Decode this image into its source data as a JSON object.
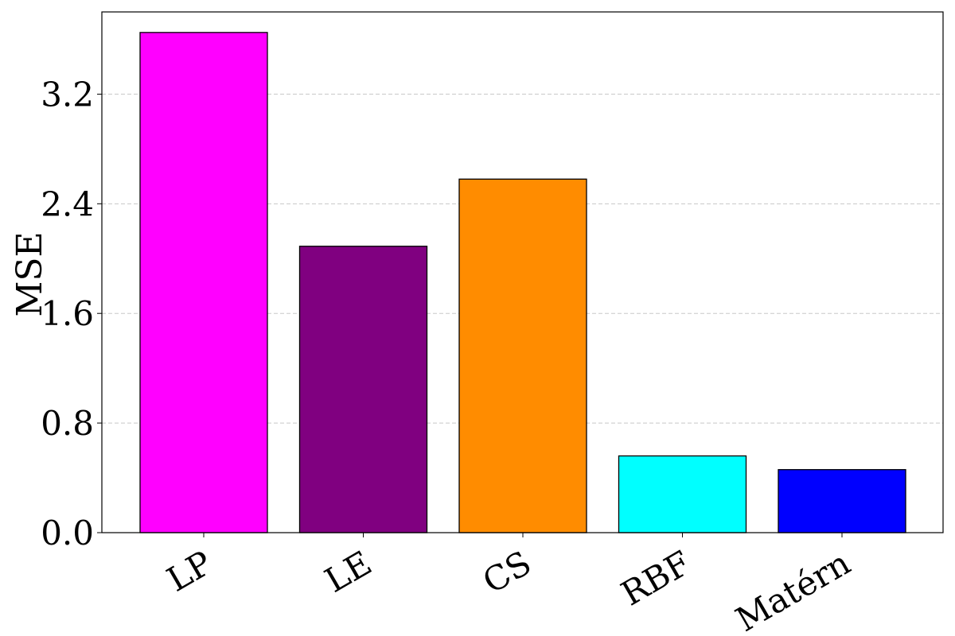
{
  "chart_data": {
    "type": "bar",
    "title": "",
    "xlabel": "",
    "ylabel": "MSE",
    "categories": [
      "LP",
      "LE",
      "CS",
      "RBF",
      "Matérn"
    ],
    "values": [
      3.65,
      2.09,
      2.58,
      0.56,
      0.46
    ],
    "colors": [
      "#ff00ff",
      "#800080",
      "#ff8c00",
      "#00ffff",
      "#0000ff"
    ],
    "bar_edge_color": "#000000",
    "ylim": [
      0,
      3.8
    ],
    "yticks": [
      0.0,
      0.8,
      1.6,
      2.4,
      3.2
    ],
    "ytick_labels": [
      "0.0",
      "0.8",
      "1.6",
      "2.4",
      "3.2"
    ],
    "grid": "horizontal dashed",
    "xtick_rotation": "-30"
  }
}
